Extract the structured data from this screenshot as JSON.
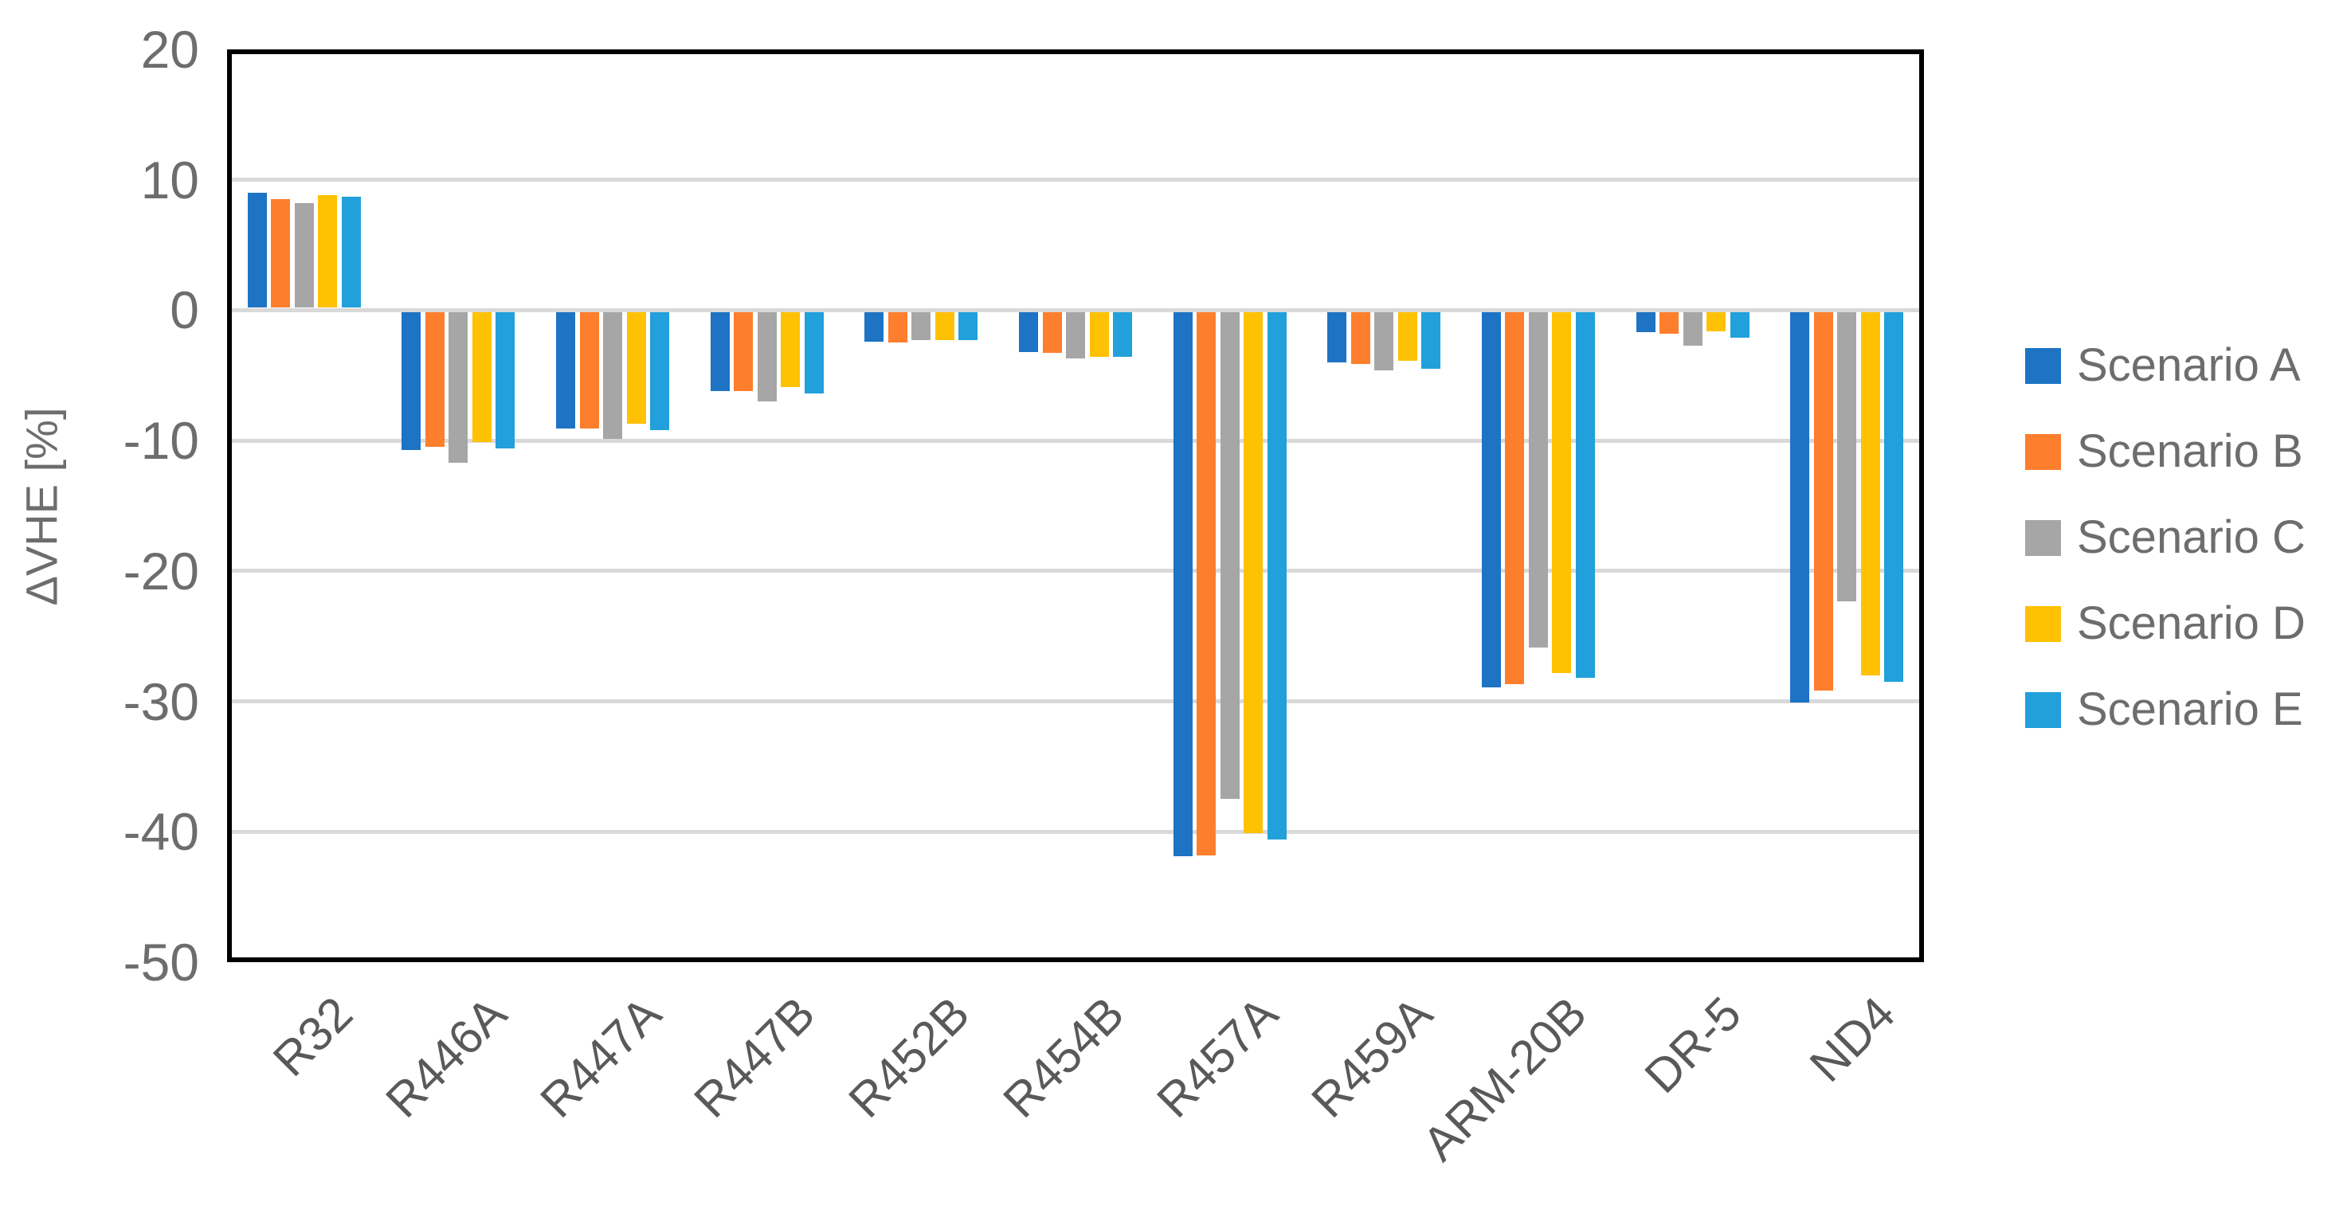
{
  "chart_data": {
    "type": "bar",
    "title": "",
    "xlabel": "",
    "ylabel": "ΔVHE [%]",
    "ylim": [
      -50,
      20
    ],
    "yticks": [
      20,
      10,
      0,
      -10,
      -20,
      -30,
      -40,
      -50
    ],
    "grid": "horizontal-gridlines-on",
    "gridline_color": "#d9d9d9",
    "plot_border_color": "#000000",
    "axis_text_color": "#6d6d6d",
    "legend_position": "right",
    "categories": [
      "R32",
      "R446A",
      "R447A",
      "R447B",
      "R452B",
      "R454B",
      "R457A",
      "R459A",
      "ARM-20B",
      "DR-5",
      "ND4"
    ],
    "series": [
      {
        "name": "Scenario A",
        "color": "#1e73c4",
        "values": [
          9.0,
          -10.7,
          -9.1,
          -6.2,
          -2.4,
          -3.2,
          -41.9,
          -4.0,
          -28.9,
          -1.7,
          -30.1
        ]
      },
      {
        "name": "Scenario B",
        "color": "#fd7e2d",
        "values": [
          8.5,
          -10.5,
          -9.1,
          -6.2,
          -2.5,
          -3.3,
          -41.8,
          -4.1,
          -28.7,
          -1.8,
          -29.2
        ]
      },
      {
        "name": "Scenario C",
        "color": "#a6a6a6",
        "values": [
          8.2,
          -11.7,
          -9.9,
          -7.0,
          -2.3,
          -3.7,
          -37.5,
          -4.6,
          -25.9,
          -2.7,
          -22.3
        ]
      },
      {
        "name": "Scenario D",
        "color": "#ffc103",
        "values": [
          8.8,
          -10.1,
          -8.7,
          -5.9,
          -2.3,
          -3.6,
          -40.1,
          -3.9,
          -27.8,
          -1.6,
          -28.0
        ]
      },
      {
        "name": "Scenario E",
        "color": "#21a0db",
        "values": [
          8.7,
          -10.6,
          -9.2,
          -6.4,
          -2.3,
          -3.6,
          -40.6,
          -4.5,
          -28.2,
          -2.1,
          -28.5
        ]
      }
    ]
  }
}
